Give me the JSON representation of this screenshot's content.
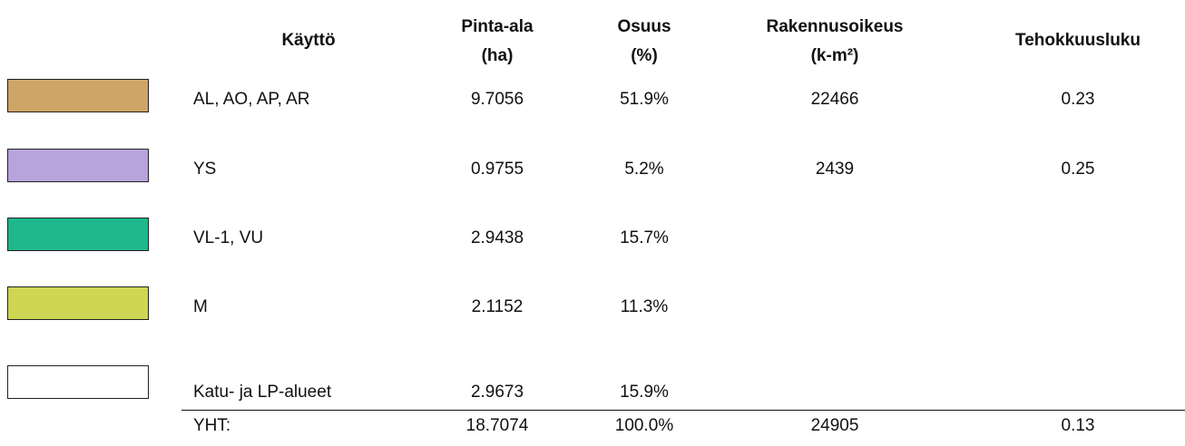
{
  "table": {
    "header": [
      [
        "Käyttö"
      ],
      [
        "Pinta-ala",
        "(ha)"
      ],
      [
        "Osuus",
        "(%)"
      ],
      [
        "Rakennusoikeus",
        "(k-m²)"
      ],
      [
        "Tehokkuusluku"
      ]
    ],
    "rows": [
      {
        "color": "#cfa467",
        "cells": [
          "AL, AO, AP, AR",
          "9.7056",
          "51.9%",
          "22466",
          "0.23"
        ]
      },
      {
        "color": "#b8a3dc",
        "cells": [
          "YS",
          "0.9755",
          "5.2%",
          "2439",
          "0.25"
        ]
      },
      {
        "color": "#1eb88c",
        "cells": [
          "VL-1, VU",
          "2.9438",
          "15.7%",
          null,
          null
        ]
      },
      {
        "color": "#ced654",
        "cells": [
          "M",
          "2.1152",
          "11.3%",
          null,
          null
        ]
      },
      {
        "color": "#ffffff",
        "cells": [
          "Katu- ja LP-alueet",
          "2.9673",
          "15.9%",
          null,
          null
        ]
      }
    ],
    "total": [
      "YHT:",
      "18.7074",
      "100.0%",
      "24905",
      "0.13"
    ]
  }
}
